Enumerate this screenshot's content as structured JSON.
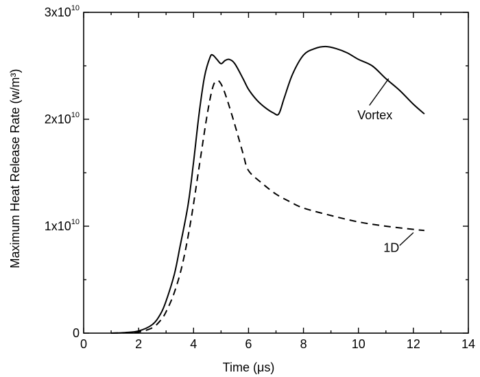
{
  "chart_data": {
    "type": "line",
    "title": "",
    "xlabel": "Time (μs)",
    "ylabel": "Maximum Heat Release Rate (w/m³)",
    "xlim": [
      0,
      14
    ],
    "ylim": [
      0,
      30000000000
    ],
    "x_ticks": [
      0,
      2,
      4,
      6,
      8,
      10,
      12,
      14
    ],
    "x_tick_labels": [
      "0",
      "2",
      "4",
      "6",
      "8",
      "10",
      "12",
      "14"
    ],
    "y_ticks": [
      {
        "value": 0,
        "base": "0",
        "exp": ""
      },
      {
        "value": 10000000000,
        "base": "1x10",
        "exp": "10"
      },
      {
        "value": 20000000000,
        "base": "2x10",
        "exp": "10"
      },
      {
        "value": 30000000000,
        "base": "3x10",
        "exp": "10"
      }
    ],
    "grid": false,
    "series": [
      {
        "name": "Vortex",
        "style": "solid",
        "label_position": [
          10.6,
          20000000000.0
        ],
        "leader_from": [
          10.4,
          21300000000.0
        ],
        "leader_to": [
          11.1,
          23800000000.0
        ],
        "x": [
          1.0,
          1.5,
          2.0,
          2.5,
          2.8,
          3.0,
          3.3,
          3.5,
          3.8,
          4.0,
          4.2,
          4.4,
          4.6,
          4.7,
          4.85,
          5.0,
          5.15,
          5.3,
          5.5,
          5.8,
          6.0,
          6.3,
          6.6,
          6.9,
          7.1,
          7.3,
          7.6,
          8.0,
          8.4,
          8.8,
          9.2,
          9.6,
          10.0,
          10.5,
          11.0,
          11.5,
          12.0,
          12.4
        ],
        "y": [
          0.0,
          50000000.0,
          200000000.0,
          800000000.0,
          1800000000.0,
          3000000000.0,
          5500000000.0,
          8000000000.0,
          12000000000.0,
          16000000000.0,
          20500000000.0,
          24000000000.0,
          25800000000.0,
          26000000000.0,
          25600000000.0,
          25200000000.0,
          25500000000.0,
          25600000000.0,
          25200000000.0,
          23800000000.0,
          22800000000.0,
          21800000000.0,
          21100000000.0,
          20600000000.0,
          20500000000.0,
          22000000000.0,
          24200000000.0,
          26000000000.0,
          26600000000.0,
          26800000000.0,
          26600000000.0,
          26200000000.0,
          25600000000.0,
          25000000000.0,
          23800000000.0,
          22700000000.0,
          21400000000.0,
          20500000000.0
        ]
      },
      {
        "name": "1D",
        "style": "dashed",
        "label_position": [
          11.2,
          7600000000.0
        ],
        "leader_from": [
          11.5,
          8200000000.0
        ],
        "leader_to": [
          12.0,
          9400000000.0
        ],
        "x": [
          1.0,
          1.5,
          2.0,
          2.5,
          2.8,
          3.0,
          3.3,
          3.6,
          3.9,
          4.2,
          4.5,
          4.7,
          4.85,
          5.0,
          5.2,
          5.5,
          5.8,
          6.0,
          6.5,
          7.0,
          7.5,
          8.0,
          9.0,
          10.0,
          11.0,
          12.0,
          12.4
        ],
        "y": [
          0.0,
          30000000.0,
          100000000.0,
          500000000.0,
          1200000000.0,
          2000000000.0,
          3800000000.0,
          6500000000.0,
          10500000000.0,
          15500000000.0,
          20500000000.0,
          23000000000.0,
          23600000000.0,
          23300000000.0,
          22000000000.0,
          19500000000.0,
          16800000000.0,
          15200000000.0,
          14000000000.0,
          13000000000.0,
          12300000000.0,
          11700000000.0,
          11000000000.0,
          10400000000.0,
          10000000000.0,
          9700000000.0,
          9600000000.0
        ]
      }
    ]
  }
}
